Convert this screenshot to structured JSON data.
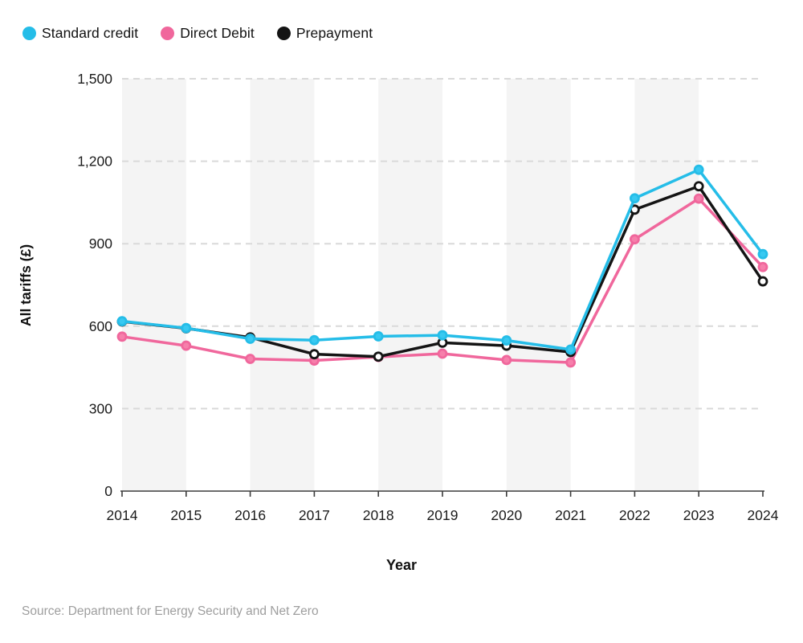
{
  "legend": {
    "items": [
      {
        "label": "Standard credit",
        "color": "#25bde8"
      },
      {
        "label": "Direct Debit",
        "color": "#f0679c"
      },
      {
        "label": "Prepayment",
        "color": "#141414"
      }
    ]
  },
  "chart_data": {
    "type": "line",
    "title": "",
    "xlabel": "Year",
    "ylabel": "All tariffs (£)",
    "x": [
      "2014",
      "2015",
      "2016",
      "2017",
      "2018",
      "2019",
      "2020",
      "2021",
      "2022",
      "2023",
      "2024"
    ],
    "ylim": [
      0,
      1500
    ],
    "y_ticks": [
      {
        "value": 0,
        "label": "0"
      },
      {
        "value": 300,
        "label": "300"
      },
      {
        "value": 600,
        "label": "600"
      },
      {
        "value": 900,
        "label": "900"
      },
      {
        "value": 1200,
        "label": "1,200"
      },
      {
        "value": 1500,
        "label": "1,500"
      }
    ],
    "grid": "horizontal-dashed",
    "legend_position": "top-left",
    "alternating_year_bands": true,
    "band_color": "#f4f4f4",
    "grid_color": "#d9d9d9",
    "axis_color": "#3c3c3c",
    "series": [
      {
        "name": "Standard credit",
        "color": "#25bde8",
        "marker_fill": "#38c9f1",
        "values": [
          618,
          593,
          554,
          549,
          563,
          567,
          548,
          515,
          1065,
          1169,
          862
        ]
      },
      {
        "name": "Direct Debit",
        "color": "#f0679c",
        "marker_fill": "#f67fab",
        "values": [
          562,
          529,
          481,
          475,
          488,
          500,
          477,
          468,
          916,
          1064,
          815
        ]
      },
      {
        "name": "Prepayment",
        "color": "#141414",
        "marker_fill": "#ffffff",
        "values": [
          617,
          592,
          559,
          498,
          489,
          540,
          529,
          506,
          1024,
          1109,
          763
        ]
      }
    ]
  },
  "source": "Source: Department for Energy Security and Net Zero"
}
